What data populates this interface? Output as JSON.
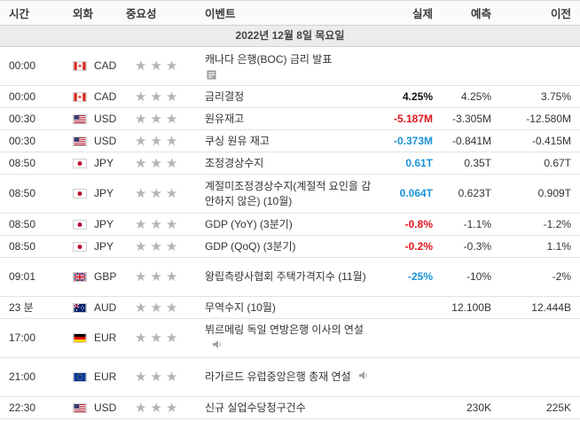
{
  "header": {
    "time": "시간",
    "currency": "외화",
    "importance": "중요성",
    "event": "이벤트",
    "actual": "실제",
    "forecast": "예측",
    "previous": "이전"
  },
  "date_label": "2022년 12월 8일 목요일",
  "colors": {
    "red": "#e0161e",
    "blue": "#1b93d6",
    "star": "#b4b4b4"
  },
  "rows": [
    {
      "time": "00:00",
      "flag": "ca",
      "currency": "CAD",
      "event": "캐나다 은행(BOC) 금리 발표",
      "icon": "document-icon",
      "actual": "",
      "actual_color": "",
      "forecast": "",
      "previous": ""
    },
    {
      "time": "00:00",
      "flag": "ca",
      "currency": "CAD",
      "event": "금리결정",
      "icon": "",
      "actual": "4.25%",
      "actual_color": "black",
      "forecast": "4.25%",
      "previous": "3.75%"
    },
    {
      "time": "00:30",
      "flag": "us",
      "currency": "USD",
      "event": "원유재고",
      "icon": "",
      "actual": "-5.187M",
      "actual_color": "red",
      "forecast": "-3.305M",
      "previous": "-12.580M"
    },
    {
      "time": "00:30",
      "flag": "us",
      "currency": "USD",
      "event": "쿠싱 원유 재고",
      "icon": "",
      "actual": "-0.373M",
      "actual_color": "blue",
      "forecast": "-0.841M",
      "previous": "-0.415M"
    },
    {
      "time": "08:50",
      "flag": "jp",
      "currency": "JPY",
      "event": "조정경상수지",
      "icon": "",
      "actual": "0.61T",
      "actual_color": "blue",
      "forecast": "0.35T",
      "previous": "0.67T"
    },
    {
      "time": "08:50",
      "flag": "jp",
      "currency": "JPY",
      "event": "계절미조정경상수지(계절적 요인을 감안하지 않은) (10월)",
      "icon": "",
      "actual": "0.064T",
      "actual_color": "blue",
      "forecast": "0.623T",
      "previous": "0.909T"
    },
    {
      "time": "08:50",
      "flag": "jp",
      "currency": "JPY",
      "event": "GDP (YoY) (3분기)",
      "icon": "",
      "actual": "-0.8%",
      "actual_color": "red",
      "forecast": "-1.1%",
      "previous": "-1.2%"
    },
    {
      "time": "08:50",
      "flag": "jp",
      "currency": "JPY",
      "event": "GDP (QoQ) (3분기)",
      "icon": "",
      "actual": "-0.2%",
      "actual_color": "red",
      "forecast": "-0.3%",
      "previous": "1.1%"
    },
    {
      "time": "09:01",
      "flag": "gb",
      "currency": "GBP",
      "event": "왕립측량사협회 주택가격지수 (11월)",
      "icon": "",
      "actual": "-25%",
      "actual_color": "blue",
      "forecast": "-10%",
      "previous": "-2%"
    },
    {
      "time": "23 분",
      "flag": "au",
      "currency": "AUD",
      "event": "무역수지 (10월)",
      "icon": "",
      "actual": "",
      "actual_color": "",
      "forecast": "12.100B",
      "previous": "12.444B"
    },
    {
      "time": "17:00",
      "flag": "de",
      "currency": "EUR",
      "event": "뷔르메링 독일 연방은행 이사의 연설",
      "icon": "speaker-icon",
      "actual": "",
      "actual_color": "",
      "forecast": "",
      "previous": ""
    },
    {
      "time": "21:00",
      "flag": "eu",
      "currency": "EUR",
      "event": "라가르드 유럽중앙은행 총재 연설",
      "icon": "speaker-icon",
      "actual": "",
      "actual_color": "",
      "forecast": "",
      "previous": ""
    },
    {
      "time": "22:30",
      "flag": "us",
      "currency": "USD",
      "event": "신규 실업수당청구건수",
      "icon": "",
      "actual": "",
      "actual_color": "",
      "forecast": "230K",
      "previous": "225K"
    }
  ]
}
